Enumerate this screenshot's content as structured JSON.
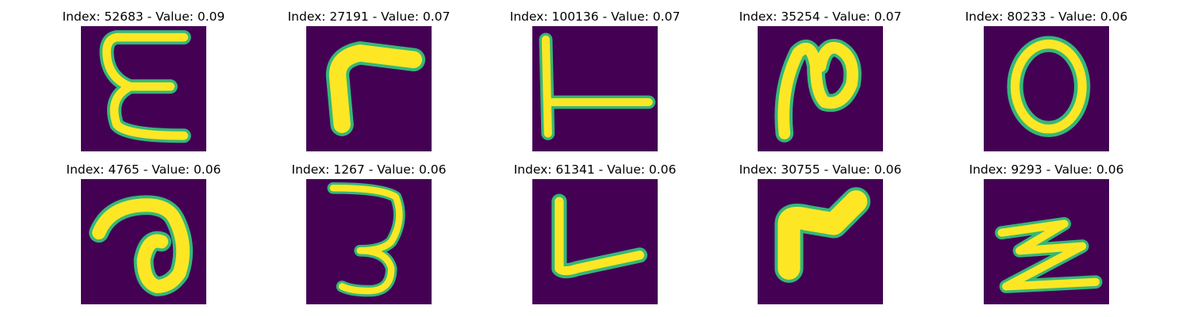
{
  "figure": {
    "background": "#ffffff",
    "colormap": "viridis",
    "image_background": "#440154",
    "stroke_color": "#fde725",
    "stroke_edge_color": "#35b779",
    "grid": "2 rows x 5 columns",
    "axes": "off"
  },
  "samples": [
    {
      "index": "52683",
      "value": "0.09",
      "title": "Index: 52683 - Value: 0.09",
      "glyph": "E-like"
    },
    {
      "index": "27191",
      "value": "0.07",
      "title": "Index: 27191 - Value: 0.07",
      "glyph": "r-like"
    },
    {
      "index": "100136",
      "value": "0.07",
      "title": "Index: 100136 - Value: 0.07",
      "glyph": "T-like rotated"
    },
    {
      "index": "35254",
      "value": "0.07",
      "title": "Index: 35254 - Value: 0.07",
      "glyph": "N-like"
    },
    {
      "index": "80233",
      "value": "0.06",
      "title": "Index: 80233 - Value: 0.06",
      "glyph": "O"
    },
    {
      "index": "4765",
      "value": "0.06",
      "title": "Index: 4765 - Value: 0.06",
      "glyph": "a-like"
    },
    {
      "index": "1267",
      "value": "0.06",
      "title": "Index: 1267 - Value: 0.06",
      "glyph": "3"
    },
    {
      "index": "61341",
      "value": "0.06",
      "title": "Index: 61341 - Value: 0.06",
      "glyph": "L"
    },
    {
      "index": "30755",
      "value": "0.06",
      "title": "Index: 30755 - Value: 0.06",
      "glyph": "r-like"
    },
    {
      "index": "9293",
      "value": "0.06",
      "title": "Index: 9293 - Value: 0.06",
      "glyph": "Z-like"
    }
  ]
}
